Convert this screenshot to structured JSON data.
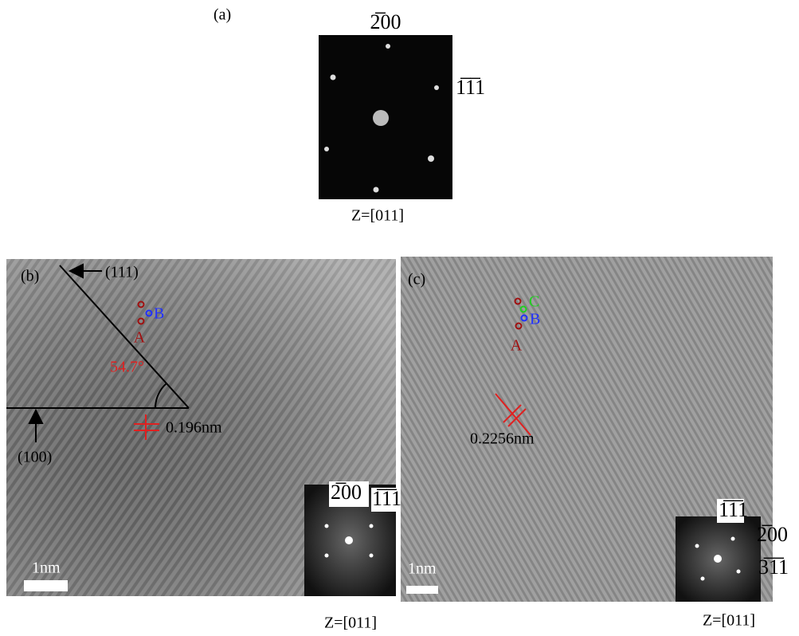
{
  "panel_a": {
    "label": "(a)",
    "spot_top": "2̅00",
    "spot_right": "1̅1̅1",
    "zone": "Z=[011]"
  },
  "panel_b": {
    "label": "(b)",
    "plane_111": "(111)",
    "plane_100": "(100)",
    "point_a": "A",
    "point_b": "B",
    "angle": "54.7°",
    "spacing": "0.196nm",
    "inset_spot_1": "2̅00",
    "inset_spot_2": "1̅1̅1",
    "scale": "1nm",
    "zone": "Z=[011]"
  },
  "panel_c": {
    "label": "(c)",
    "point_a": "A",
    "point_b": "B",
    "point_c": "C",
    "spacing": "0.2256nm",
    "inset_spot_1": "1̅1̅1",
    "inset_spot_2": "2̅00",
    "inset_spot_3": "3̅1̅1",
    "scale": "1nm",
    "zone": "Z=[011]"
  }
}
